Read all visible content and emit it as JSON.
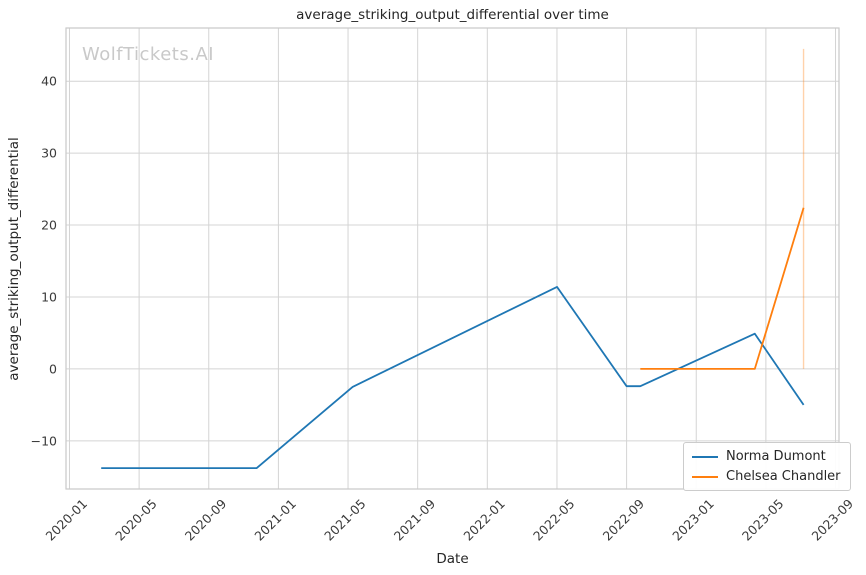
{
  "chart_data": {
    "type": "line",
    "title": "average_striking_output_differential over time",
    "xlabel": "Date",
    "ylabel": "average_striking_output_differential",
    "watermark": "WolfTickets.AI",
    "legend_position": "lower right",
    "grid": true,
    "grid_color": "#d4d4d4",
    "spine_color": "#c9c9c9",
    "text_color": "#3a3a3a",
    "background_color": "#ffffff",
    "xticks": [
      "2020-01",
      "2020-05",
      "2020-09",
      "2021-01",
      "2021-05",
      "2021-09",
      "2022-01",
      "2022-05",
      "2022-09",
      "2023-01",
      "2023-05",
      "2023-09"
    ],
    "yticks": [
      -10,
      0,
      10,
      20,
      30,
      40
    ],
    "xlim_months": [
      -0.2,
      44.2
    ],
    "ylim": [
      -16.7,
      47.4
    ],
    "series": [
      {
        "name": "Norma Dumont",
        "color": "#1f77b4",
        "points": [
          [
            "2020-02-26",
            -13.8
          ],
          [
            "2020-11-24",
            -13.8
          ],
          [
            "2021-05-09",
            -2.5
          ],
          [
            "2022-05-01",
            11.4
          ],
          [
            "2022-09-01",
            -2.4
          ],
          [
            "2022-09-25",
            -2.4
          ],
          [
            "2023-04-12",
            4.9
          ],
          [
            "2023-07-06",
            -5.0
          ]
        ]
      },
      {
        "name": "Chelsea Chandler",
        "color": "#ff7f0e",
        "points": [
          [
            "2022-09-25",
            0.0
          ],
          [
            "2023-04-12",
            0.0
          ],
          [
            "2023-07-06",
            22.4
          ]
        ],
        "error_bar": {
          "date": "2023-07-06",
          "from": 0.0,
          "to": 44.5,
          "color": "rgba(255,127,14,0.35)"
        }
      }
    ]
  }
}
